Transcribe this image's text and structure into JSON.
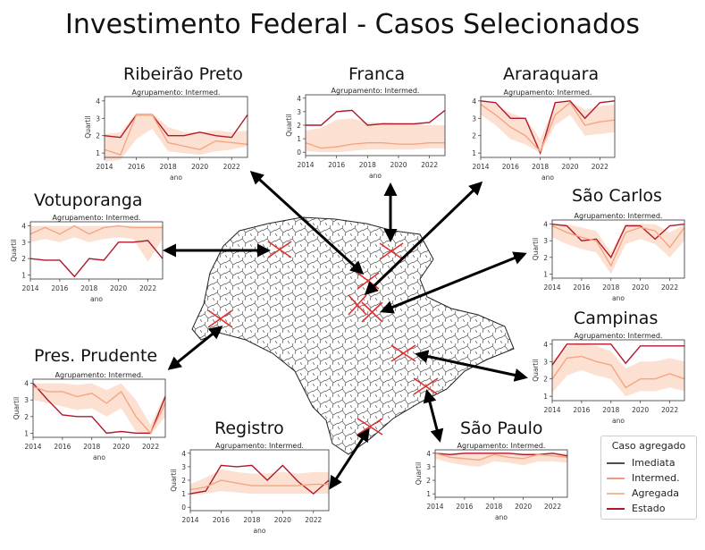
{
  "title": "Investimento Federal - Casos Selecionados",
  "legend": {
    "title": "Caso agregado",
    "entries": [
      {
        "label": "Imediata",
        "color": "#4d4d4d"
      },
      {
        "label": "Intermed.",
        "color": "#f09a85"
      },
      {
        "label": "Agregada",
        "color": "#f6b896"
      },
      {
        "label": "Estado",
        "color": "#b2182b"
      }
    ]
  },
  "colors": {
    "estado": "#b2182b",
    "agregada": "#f4a582",
    "band": "#fbd7c4"
  },
  "chart_data": [
    {
      "type": "line",
      "city": "Ribeirão Preto",
      "subtitle": "Agrupamento: Intermed.",
      "xlabel": "ano",
      "ylabel": "Quartil",
      "x": [
        2014,
        2015,
        2016,
        2017,
        2018,
        2019,
        2020,
        2021,
        2022,
        2023
      ],
      "xticks": [
        2014,
        2016,
        2018,
        2020,
        2022
      ],
      "ylim": [
        1,
        4
      ],
      "yticks": [
        1,
        2,
        3,
        4
      ],
      "series": [
        {
          "name": "Estado",
          "values": [
            2,
            1.9,
            3.2,
            3.2,
            2,
            2,
            2.2,
            2,
            1.9,
            3.2
          ]
        },
        {
          "name": "Agregada",
          "values": [
            1.2,
            0.9,
            3.2,
            3.2,
            1.6,
            1.4,
            1.2,
            1.7,
            1.6,
            1.5
          ]
        }
      ],
      "band": {
        "low": [
          0.5,
          0.6,
          1.8,
          2.4,
          1.1,
          1,
          0.9,
          1.1,
          1.2,
          1.4
        ],
        "high": [
          2.1,
          2.2,
          3.3,
          3.3,
          2.5,
          2.2,
          2.2,
          2.3,
          2.2,
          2.3
        ]
      }
    },
    {
      "type": "line",
      "city": "Franca",
      "subtitle": "Agrupamento: Intermed.",
      "xlabel": "ano",
      "ylabel": "Quartil",
      "x": [
        2014,
        2015,
        2016,
        2017,
        2018,
        2019,
        2020,
        2021,
        2022,
        2023
      ],
      "xticks": [
        2014,
        2016,
        2018,
        2020,
        2022
      ],
      "ylim": [
        0,
        4
      ],
      "yticks": [
        0,
        1,
        2,
        3,
        4
      ],
      "series": [
        {
          "name": "Estado",
          "values": [
            2,
            2,
            3,
            3.1,
            2,
            2.1,
            2.1,
            2.1,
            2.2,
            3.1
          ]
        },
        {
          "name": "Agregada",
          "values": [
            0.7,
            0.3,
            0.4,
            0.6,
            0.7,
            0.7,
            0.6,
            0.6,
            0.7,
            0.7
          ]
        }
      ],
      "band": {
        "low": [
          0.1,
          0,
          0,
          0.1,
          0.2,
          0.2,
          0.2,
          0.2,
          0.3,
          0.3
        ],
        "high": [
          1.6,
          1.8,
          2.4,
          2.5,
          2.2,
          2.2,
          2.1,
          2.1,
          2,
          2
        ]
      }
    },
    {
      "type": "line",
      "city": "Araraquara",
      "subtitle": "Agrupamento: Intermed.",
      "xlabel": "ano",
      "ylabel": "",
      "x": [
        2014,
        2015,
        2016,
        2017,
        2018,
        2019,
        2020,
        2021,
        2022,
        2023
      ],
      "xticks": [
        2014,
        2016,
        2018,
        2020,
        2022
      ],
      "ylim": [
        1,
        4
      ],
      "yticks": [
        1,
        2,
        3,
        4
      ],
      "series": [
        {
          "name": "Estado",
          "values": [
            4,
            3.9,
            3,
            3,
            1,
            3.9,
            4,
            3,
            3.9,
            4
          ]
        },
        {
          "name": "Agregada",
          "values": [
            3.8,
            3.2,
            2.5,
            2,
            1.1,
            3.2,
            3.9,
            2.6,
            2.8,
            2.9
          ]
        }
      ],
      "band": {
        "low": [
          3.2,
          2.6,
          1.8,
          1.5,
          1,
          2.6,
          3.2,
          2,
          2.1,
          2.2
        ],
        "high": [
          4,
          3.8,
          3.3,
          3,
          1.8,
          3.8,
          4,
          3.5,
          3.7,
          3.8
        ]
      }
    },
    {
      "type": "line",
      "city": "Votuporanga",
      "subtitle": "Agrupamento: Intermed.",
      "xlabel": "ano",
      "ylabel": "Quartil",
      "x": [
        2014,
        2015,
        2016,
        2017,
        2018,
        2019,
        2020,
        2021,
        2022,
        2023
      ],
      "xticks": [
        2014,
        2016,
        2018,
        2020,
        2022
      ],
      "ylim": [
        1,
        4
      ],
      "yticks": [
        1,
        2,
        3,
        4
      ],
      "series": [
        {
          "name": "Estado",
          "values": [
            2,
            1.9,
            1.9,
            0.9,
            2,
            1.9,
            3,
            3,
            3.1,
            2
          ]
        },
        {
          "name": "Agregada",
          "values": [
            3.5,
            3.9,
            3.5,
            4,
            3.5,
            3.9,
            4,
            3.9,
            3.9,
            3.9
          ]
        }
      ],
      "band": {
        "low": [
          3,
          3.2,
          3,
          3.3,
          3,
          3.2,
          3.3,
          3.2,
          1.8,
          3.2
        ],
        "high": [
          4,
          4,
          4,
          4,
          4,
          4,
          4,
          4,
          4,
          4
        ]
      }
    },
    {
      "type": "line",
      "city": "São Carlos",
      "subtitle": "Agrupamento: Intermed.",
      "xlabel": "ano",
      "ylabel": "Quartil",
      "x": [
        2014,
        2015,
        2016,
        2017,
        2018,
        2019,
        2020,
        2021,
        2022,
        2023
      ],
      "xticks": [
        2014,
        2016,
        2018,
        2020,
        2022
      ],
      "ylim": [
        1,
        4
      ],
      "yticks": [
        1,
        2,
        3,
        4
      ],
      "series": [
        {
          "name": "Estado",
          "values": [
            4,
            3.9,
            3,
            3.1,
            2,
            3.9,
            3.9,
            3.1,
            3.9,
            4
          ]
        },
        {
          "name": "Agregada",
          "values": [
            3.9,
            3.5,
            3.2,
            3,
            1.5,
            3.5,
            3.8,
            3.6,
            2.6,
            3.8
          ]
        }
      ],
      "band": {
        "low": [
          3.2,
          2.8,
          2.5,
          2.3,
          1,
          2.8,
          3.1,
          2.8,
          2,
          3
        ],
        "high": [
          4,
          4,
          3.8,
          3.6,
          2.3,
          4,
          4,
          4,
          3.5,
          4
        ]
      }
    },
    {
      "type": "line",
      "city": "Campinas",
      "subtitle": "Agrupamento: Intermed.",
      "xlabel": "ano",
      "ylabel": "Quartil",
      "x": [
        2014,
        2015,
        2016,
        2017,
        2018,
        2019,
        2020,
        2021,
        2022,
        2023
      ],
      "xticks": [
        2014,
        2016,
        2018,
        2020,
        2022
      ],
      "ylim": [
        1,
        4
      ],
      "yticks": [
        1,
        2,
        3,
        4
      ],
      "series": [
        {
          "name": "Estado",
          "values": [
            2.8,
            4,
            4,
            4,
            4,
            2.9,
            3.9,
            3.9,
            3.9,
            3.9
          ]
        },
        {
          "name": "Agregada",
          "values": [
            2,
            3.2,
            3.3,
            3,
            2.8,
            1.5,
            2,
            2,
            2.3,
            2
          ]
        }
      ],
      "band": {
        "low": [
          1.2,
          2.2,
          2.5,
          2.2,
          2,
          1,
          1.3,
          1.3,
          1.5,
          1.3
        ],
        "high": [
          3,
          3.9,
          4,
          3.9,
          3.6,
          2.6,
          3,
          3,
          3.2,
          3
        ]
      }
    },
    {
      "type": "line",
      "city": "Pres. Prudente",
      "subtitle": "Agrupamento: Intermed.",
      "xlabel": "ano",
      "ylabel": "Quartil",
      "x": [
        2014,
        2015,
        2016,
        2017,
        2018,
        2019,
        2020,
        2021,
        2022,
        2023
      ],
      "xticks": [
        2014,
        2016,
        2018,
        2020,
        2022
      ],
      "ylim": [
        1,
        4
      ],
      "yticks": [
        1,
        2,
        3,
        4
      ],
      "series": [
        {
          "name": "Estado",
          "values": [
            4,
            3,
            2.1,
            2,
            2,
            1,
            1.1,
            1,
            1,
            3.2
          ]
        },
        {
          "name": "Agregada",
          "values": [
            3.8,
            3.5,
            3.5,
            3.2,
            3.4,
            2.8,
            3.5,
            2,
            1,
            2.8
          ]
        }
      ],
      "band": {
        "low": [
          3,
          2.8,
          2.6,
          2.4,
          2.5,
          2,
          2.5,
          1.1,
          0.9,
          2
        ],
        "high": [
          4,
          4,
          4,
          3.9,
          4,
          3.6,
          4,
          3,
          1.5,
          3.4
        ]
      }
    },
    {
      "type": "line",
      "city": "Registro",
      "subtitle": "Agrupamento: Intermed.",
      "xlabel": "ano",
      "ylabel": "Quartil",
      "x": [
        2014,
        2015,
        2016,
        2017,
        2018,
        2019,
        2020,
        2021,
        2022,
        2023
      ],
      "xticks": [
        2014,
        2016,
        2018,
        2020,
        2022
      ],
      "ylim": [
        0,
        4
      ],
      "yticks": [
        0,
        1,
        2,
        3,
        4
      ],
      "series": [
        {
          "name": "Estado",
          "values": [
            1,
            1.2,
            3.1,
            3,
            3.1,
            2,
            3.1,
            1.9,
            1,
            2
          ]
        },
        {
          "name": "Agregada",
          "values": [
            1.3,
            1.5,
            2,
            1.8,
            1.6,
            1.6,
            1.6,
            1.6,
            1.7,
            1.7
          ]
        }
      ],
      "band": {
        "low": [
          0.9,
          1,
          1.2,
          1.1,
          1,
          1,
          1,
          1,
          1,
          1
        ],
        "high": [
          1.7,
          2.2,
          2.8,
          2.6,
          2.5,
          2.5,
          2.6,
          2.5,
          2.6,
          2.6
        ]
      }
    },
    {
      "type": "line",
      "city": "São Paulo",
      "subtitle": "Agrupamento: Intermed.",
      "xlabel": "ano",
      "ylabel": "Quartil",
      "x": [
        2014,
        2015,
        2016,
        2017,
        2018,
        2019,
        2020,
        2021,
        2022,
        2023
      ],
      "xticks": [
        2014,
        2016,
        2018,
        2020,
        2022
      ],
      "ylim": [
        1,
        4
      ],
      "yticks": [
        1,
        2,
        3,
        4
      ],
      "series": [
        {
          "name": "Estado",
          "values": [
            4,
            3.9,
            4,
            4,
            4,
            4,
            3.9,
            3.9,
            4,
            3.8
          ]
        },
        {
          "name": "Agregada",
          "values": [
            4,
            3.7,
            3.6,
            3.5,
            3.9,
            3.7,
            3.6,
            3.9,
            3.8,
            3.7
          ]
        }
      ],
      "band": {
        "low": [
          3.6,
          3.3,
          3.1,
          3,
          3.4,
          3.3,
          3.1,
          3.4,
          3.4,
          3.3
        ],
        "high": [
          4,
          4,
          4,
          4,
          4,
          4,
          4,
          4,
          4,
          4
        ]
      }
    }
  ]
}
